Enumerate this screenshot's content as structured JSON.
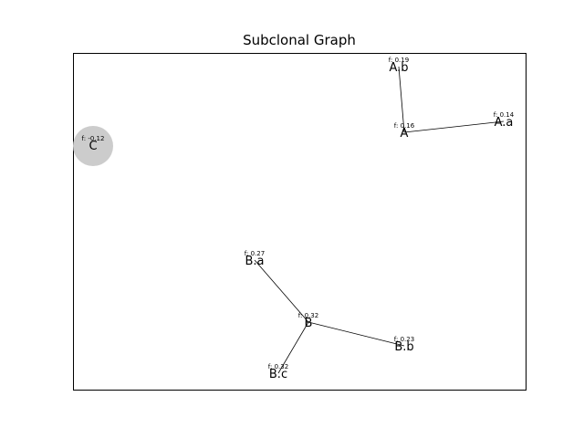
{
  "title": "Subclonal Graph",
  "colors": {
    "edge": "#000000",
    "frame": "#000000",
    "highlight_node": "#cccccc",
    "background": "#ffffff"
  },
  "nodes": [
    {
      "id": "A.b",
      "label": "A.b",
      "freq": "f: 0.19"
    },
    {
      "id": "A",
      "label": "A",
      "freq": "f: 0.16"
    },
    {
      "id": "A.a",
      "label": "A.a",
      "freq": "f: 0.14"
    },
    {
      "id": "C",
      "label": "C",
      "freq": "f: -0.12",
      "highlighted": true
    },
    {
      "id": "B.a",
      "label": "B.a",
      "freq": "f: 0.27"
    },
    {
      "id": "B",
      "label": "B",
      "freq": "f: 0.32"
    },
    {
      "id": "B.b",
      "label": "B.b",
      "freq": "f: 0.23"
    },
    {
      "id": "B.c",
      "label": "B.c",
      "freq": "f: 0.32"
    }
  ],
  "edges": [
    {
      "from": "A",
      "to": "A.b"
    },
    {
      "from": "A",
      "to": "A.a"
    },
    {
      "from": "B",
      "to": "B.a"
    },
    {
      "from": "B",
      "to": "B.b"
    },
    {
      "from": "B",
      "to": "B.c"
    }
  ]
}
